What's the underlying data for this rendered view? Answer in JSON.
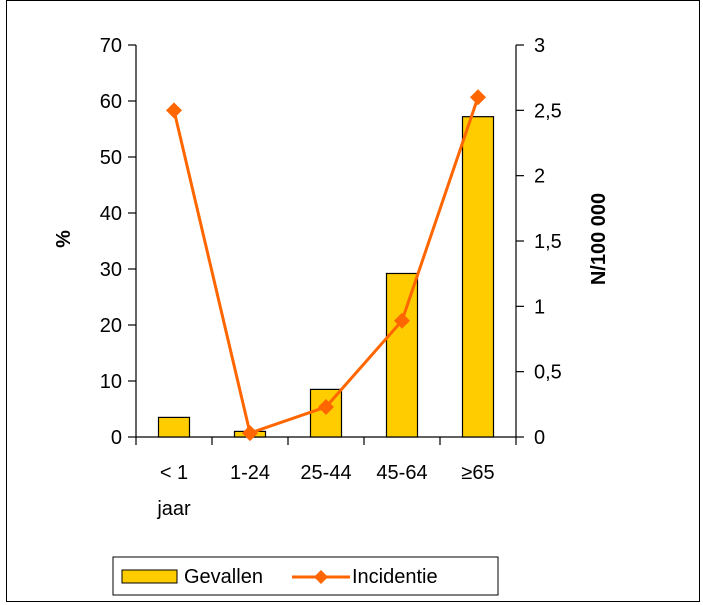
{
  "chart_data": {
    "type": "bar+line",
    "categories": [
      "< 1\njaar",
      "1-24",
      "25-44",
      "45-64",
      "≥65"
    ],
    "category_lines": [
      [
        "< 1",
        "jaar"
      ],
      [
        "1-24"
      ],
      [
        "25-44"
      ],
      [
        "45-64"
      ],
      [
        "≥65"
      ]
    ],
    "series": [
      {
        "name": "Gevallen",
        "kind": "bar",
        "axis": "left",
        "values": [
          3.5,
          1.0,
          8.5,
          29.2,
          57.2
        ],
        "color": "#FFCC00"
      },
      {
        "name": "Incidentie",
        "kind": "line",
        "axis": "right",
        "values": [
          2.5,
          0.03,
          0.23,
          0.89,
          2.6
        ],
        "color": "#FF6600"
      }
    ],
    "ylabel": "%",
    "y2label": "N/100 000",
    "ylim": [
      0,
      70
    ],
    "y2lim": [
      0,
      3
    ],
    "yticks": [
      "0",
      "10",
      "20",
      "30",
      "40",
      "50",
      "60",
      "70"
    ],
    "y2ticks": [
      "0",
      "0,5",
      "1",
      "1,5",
      "2",
      "2,5",
      "3"
    ],
    "legend_position": "bottom",
    "grid": false
  }
}
